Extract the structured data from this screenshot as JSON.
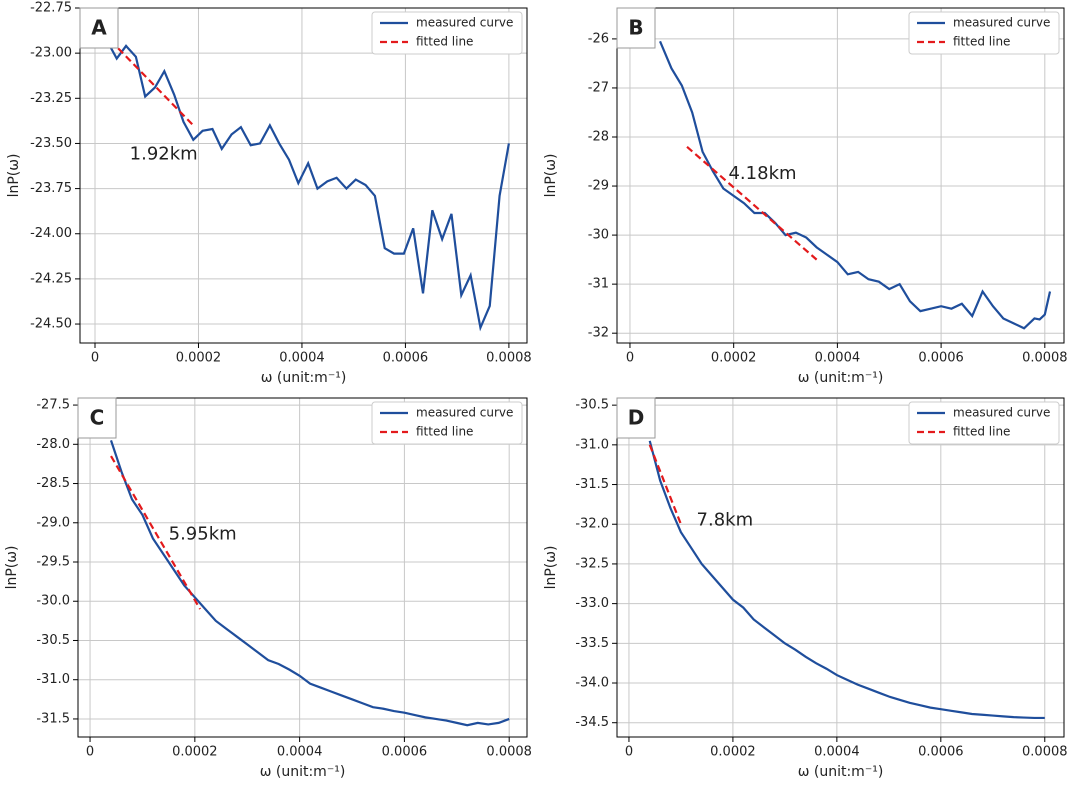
{
  "chart_data": [
    {
      "type": "line",
      "label": "A",
      "xlabel": "ω (unit:m⁻¹)",
      "ylabel": "lnP(ω)",
      "grid": true,
      "legend": "upper right",
      "xlim": [
        -2.9e-05,
        0.000835
      ],
      "ylim": [
        -24.605,
        -22.75
      ],
      "xticks": [
        0,
        0.0002,
        0.0004,
        0.0006,
        0.0008
      ],
      "yticks": [
        -22.75,
        {
          "value": -23,
          "label": "-23.00"
        },
        -23.25,
        {
          "value": -23.5,
          "label": "-23.50"
        },
        -23.75,
        {
          "value": -24,
          "label": "-24.00"
        },
        -24.25,
        {
          "value": -24.5,
          "label": "-24.50"
        }
      ],
      "series": [
        {
          "name": "measured curve",
          "color": "#1f4e9c",
          "x": [
            2.3e-05,
            4.2e-05,
            6e-05,
            7.9e-05,
            9.7e-05,
            0.000116,
            0.000134,
            0.000153,
            0.000171,
            0.00019,
            0.000208,
            0.000227,
            0.000245,
            0.000264,
            0.000282,
            0.000301,
            0.000319,
            0.000338,
            0.000356,
            0.000375,
            0.000393,
            0.000412,
            0.00043,
            0.000449,
            0.000467,
            0.000486,
            0.000504,
            0.000523,
            0.000541,
            0.00056,
            0.000578,
            0.000597,
            0.000615,
            0.000634,
            0.000652,
            0.000671,
            0.000689,
            0.000708,
            0.000726,
            0.000745,
            0.000763,
            0.000782,
            0.0008
          ],
          "values": [
            -22.93,
            -23.03,
            -22.96,
            -23.02,
            -23.24,
            -23.19,
            -23.1,
            -23.23,
            -23.38,
            -23.48,
            -23.43,
            -23.42,
            -23.53,
            -23.45,
            -23.41,
            -23.51,
            -23.5,
            -23.4,
            -23.5,
            -23.59,
            -23.72,
            -23.61,
            -23.75,
            -23.71,
            -23.69,
            -23.75,
            -23.7,
            -23.73,
            -23.79,
            -24.08,
            -24.11,
            -24.11,
            -23.97,
            -24.33,
            -23.87,
            -24.03,
            -23.89,
            -24.34,
            -24.23,
            -24.52,
            -24.4,
            -23.79,
            -23.5
          ]
        },
        {
          "name": "fitted line",
          "color": "#e31a1c",
          "dashed": true,
          "x": [
            3e-05,
            0.00019
          ],
          "values": [
            -22.93,
            -23.4
          ]
        }
      ],
      "annotations": [
        {
          "text": "1.92km",
          "x": 6.7e-05,
          "y": -23.56
        }
      ]
    },
    {
      "type": "line",
      "label": "B",
      "xlabel": "ω (unit:m⁻¹)",
      "ylabel": "lnP(ω)",
      "grid": true,
      "legend": "upper right",
      "xlim": [
        -2.5e-05,
        0.000837
      ],
      "ylim": [
        -32.2,
        -25.37
      ],
      "xticks": [
        0,
        0.0002,
        0.0004,
        0.0006,
        0.0008
      ],
      "yticks": [
        -26,
        -27,
        -28,
        -29,
        -30,
        -31,
        -32
      ],
      "series": [
        {
          "name": "measured curve",
          "color": "#1f4e9c",
          "x": [
            5.8e-05,
            8e-05,
            0.0001,
            0.00012,
            0.00014,
            0.00016,
            0.00018,
            0.0002,
            0.00022,
            0.00024,
            0.00026,
            0.00028,
            0.0003,
            0.00032,
            0.00034,
            0.00036,
            0.00038,
            0.0004,
            0.00042,
            0.00044,
            0.00046,
            0.00048,
            0.0005,
            0.00052,
            0.00054,
            0.00056,
            0.00058,
            0.0006,
            0.00062,
            0.00064,
            0.00066,
            0.00068,
            0.0007,
            0.00072,
            0.00074,
            0.00076,
            0.00078,
            0.00079,
            0.0008,
            0.00081
          ],
          "values": [
            -26.05,
            -26.6,
            -26.95,
            -27.5,
            -28.3,
            -28.7,
            -29.05,
            -29.2,
            -29.35,
            -29.55,
            -29.55,
            -29.75,
            -30,
            -29.95,
            -30.05,
            -30.25,
            -30.4,
            -30.55,
            -30.8,
            -30.75,
            -30.9,
            -30.95,
            -31.1,
            -31,
            -31.35,
            -31.55,
            -31.5,
            -31.45,
            -31.5,
            -31.4,
            -31.65,
            -31.15,
            -31.45,
            -31.7,
            -31.8,
            -31.9,
            -31.7,
            -31.72,
            -31.62,
            -31.15
          ]
        },
        {
          "name": "fitted line",
          "color": "#e31a1c",
          "dashed": true,
          "x": [
            0.00011,
            0.00036
          ],
          "values": [
            -28.2,
            -30.5
          ]
        }
      ],
      "annotations": [
        {
          "text": "4.18km",
          "x": 0.00019,
          "y": -28.75
        }
      ]
    },
    {
      "type": "line",
      "label": "C",
      "xlabel": "ω (unit:m⁻¹)",
      "ylabel": "lnP(ω)",
      "grid": true,
      "legend": "upper right",
      "xlim": [
        -2.3e-05,
        0.000834
      ],
      "ylim": [
        -31.73,
        -27.41
      ],
      "xticks": [
        0,
        0.0002,
        0.0004,
        0.0006,
        0.0008
      ],
      "yticks": [
        -27.5,
        {
          "value": -28,
          "label": "-28.0"
        },
        -28.5,
        {
          "value": -29,
          "label": "-29.0"
        },
        -29.5,
        {
          "value": -30,
          "label": "-30.0"
        },
        -30.5,
        {
          "value": -31,
          "label": "-31.0"
        },
        -31.5
      ],
      "series": [
        {
          "name": "measured curve",
          "color": "#1f4e9c",
          "x": [
            4e-05,
            6e-05,
            8e-05,
            0.0001,
            0.00012,
            0.00014,
            0.00016,
            0.00018,
            0.0002,
            0.00022,
            0.00024,
            0.00026,
            0.00028,
            0.0003,
            0.00032,
            0.00034,
            0.00036,
            0.00038,
            0.0004,
            0.00042,
            0.00044,
            0.00046,
            0.00048,
            0.0005,
            0.00052,
            0.00054,
            0.00056,
            0.00058,
            0.0006,
            0.00062,
            0.00064,
            0.00066,
            0.00068,
            0.0007,
            0.00072,
            0.00074,
            0.00076,
            0.00078,
            0.0008
          ],
          "values": [
            -27.95,
            -28.35,
            -28.7,
            -28.9,
            -29.2,
            -29.4,
            -29.6,
            -29.8,
            -29.95,
            -30.1,
            -30.25,
            -30.35,
            -30.45,
            -30.55,
            -30.65,
            -30.75,
            -30.8,
            -30.87,
            -30.95,
            -31.05,
            -31.1,
            -31.15,
            -31.2,
            -31.25,
            -31.3,
            -31.35,
            -31.37,
            -31.4,
            -31.42,
            -31.45,
            -31.48,
            -31.5,
            -31.52,
            -31.55,
            -31.58,
            -31.55,
            -31.57,
            -31.55,
            -31.5
          ]
        },
        {
          "name": "fitted line",
          "color": "#e31a1c",
          "dashed": true,
          "x": [
            4e-05,
            0.00021
          ],
          "values": [
            -28.15,
            -30.1
          ]
        }
      ],
      "annotations": [
        {
          "text": "5.95km",
          "x": 0.00015,
          "y": -29.15
        }
      ]
    },
    {
      "type": "line",
      "label": "D",
      "xlabel": "ω (unit:m⁻¹)",
      "ylabel": "lnP(ω)",
      "grid": true,
      "legend": "upper right",
      "xlim": [
        -2.3e-05,
        0.000837
      ],
      "ylim": [
        -34.68,
        -30.41
      ],
      "xticks": [
        0,
        0.0002,
        0.0004,
        0.0006,
        0.0008
      ],
      "yticks": [
        -30.5,
        {
          "value": -31,
          "label": "-31.0"
        },
        -31.5,
        {
          "value": -32,
          "label": "-32.0"
        },
        -32.5,
        {
          "value": -33,
          "label": "-33.0"
        },
        -33.5,
        {
          "value": -34,
          "label": "-34.0"
        },
        -34.5
      ],
      "series": [
        {
          "name": "measured curve",
          "color": "#1f4e9c",
          "x": [
            4e-05,
            6e-05,
            8e-05,
            0.0001,
            0.00012,
            0.00014,
            0.00016,
            0.00018,
            0.0002,
            0.00022,
            0.00024,
            0.00026,
            0.00028,
            0.0003,
            0.00032,
            0.00034,
            0.00036,
            0.00038,
            0.0004,
            0.00042,
            0.00044,
            0.00046,
            0.00048,
            0.0005,
            0.00052,
            0.00054,
            0.00056,
            0.00058,
            0.0006,
            0.00062,
            0.00064,
            0.00066,
            0.00068,
            0.0007,
            0.00072,
            0.00074,
            0.00076,
            0.00078,
            0.0008
          ],
          "values": [
            -30.95,
            -31.45,
            -31.8,
            -32.1,
            -32.3,
            -32.5,
            -32.65,
            -32.8,
            -32.95,
            -33.05,
            -33.2,
            -33.3,
            -33.4,
            -33.5,
            -33.58,
            -33.67,
            -33.75,
            -33.82,
            -33.9,
            -33.96,
            -34.02,
            -34.07,
            -34.12,
            -34.17,
            -34.21,
            -34.25,
            -34.28,
            -34.31,
            -34.33,
            -34.35,
            -34.37,
            -34.39,
            -34.4,
            -34.41,
            -34.42,
            -34.43,
            -34.435,
            -34.44,
            -34.44
          ]
        },
        {
          "name": "fitted line",
          "color": "#e31a1c",
          "dashed": true,
          "x": [
            4e-05,
            0.0001
          ],
          "values": [
            -31,
            -32
          ]
        }
      ],
      "annotations": [
        {
          "text": "7.8km",
          "x": 0.00013,
          "y": -31.95
        }
      ]
    }
  ]
}
